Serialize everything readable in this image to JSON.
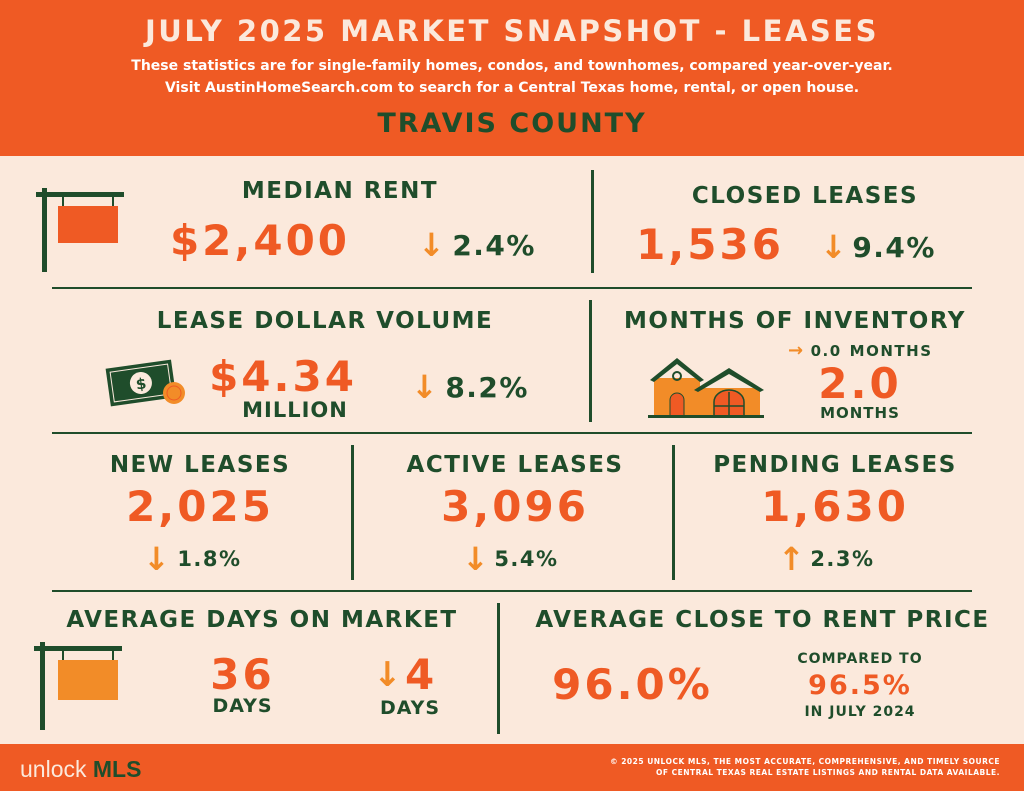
{
  "header": {
    "title": "JULY 2025 MARKET SNAPSHOT - LEASES",
    "subtitle_1": "These statistics are for single-family homes, condos, and townhomes, compared year-over-year.",
    "subtitle_2": "Visit AustinHomeSearch.com to search for a Central Texas home, rental, or open house.",
    "county": "TRAVIS COUNTY"
  },
  "median_rent": {
    "label": "MEDIAN RENT",
    "value": "$2,400",
    "change": "2.4%",
    "direction": "down"
  },
  "closed_leases": {
    "label": "CLOSED LEASES",
    "value": "1,536",
    "change": "9.4%",
    "direction": "down"
  },
  "lease_dollar_volume": {
    "label": "LEASE DOLLAR VOLUME",
    "value": "$4.34",
    "unit": "MILLION",
    "change": "8.2%",
    "direction": "down"
  },
  "months_inventory": {
    "label": "MONTHS OF INVENTORY",
    "change": "0.0",
    "change_unit": "MONTHS",
    "direction": "flat",
    "value": "2.0",
    "unit": "MONTHS"
  },
  "new_leases": {
    "label": "NEW LEASES",
    "value": "2,025",
    "change": "1.8%",
    "direction": "down"
  },
  "active_leases": {
    "label": "ACTIVE LEASES",
    "value": "3,096",
    "change": "5.4%",
    "direction": "down"
  },
  "pending_leases": {
    "label": "PENDING LEASES",
    "value": "1,630",
    "change": "2.3%",
    "direction": "up"
  },
  "avg_days": {
    "label": "AVERAGE DAYS ON MARKET",
    "value": "36",
    "unit": "DAYS",
    "change": "4",
    "change_unit": "DAYS",
    "direction": "down"
  },
  "close_to_rent": {
    "label": "AVERAGE CLOSE TO RENT PRICE",
    "value": "96.0%",
    "compared_label": "COMPARED TO",
    "compared_value": "96.5%",
    "compared_period": "IN JULY 2024"
  },
  "footer": {
    "logo_light": "unlock",
    "logo_bold": "MLS",
    "copyright_1": "© 2025 UNLOCK MLS, THE MOST ACCURATE, COMPREHENSIVE, AND TIMELY SOURCE",
    "copyright_2": "OF CENTRAL TEXAS REAL ESTATE LISTINGS AND RENTAL DATA AVAILABLE."
  },
  "icons": {
    "down": "arrow-down-icon",
    "up": "arrow-up-icon",
    "flat": "arrow-right-icon"
  },
  "colors": {
    "orange": "#ef5a24",
    "green": "#1f4d2b",
    "cream": "#fbe9dc",
    "accent": "#f28c28"
  }
}
